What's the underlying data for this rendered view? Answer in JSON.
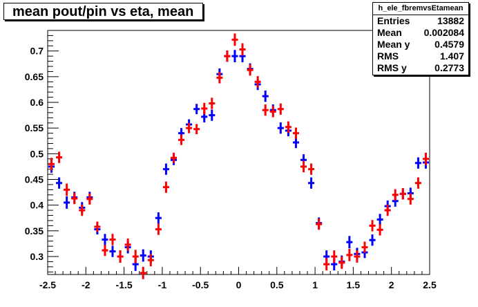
{
  "title": "mean pout/pin vs eta, mean",
  "stats": {
    "name": "h_ele_fbremvsEtamean",
    "rows": [
      {
        "label": "Entries",
        "value": "13882"
      },
      {
        "label": "Mean",
        "value": "0.002084"
      },
      {
        "label": "Mean y",
        "value": "0.4579"
      },
      {
        "label": "RMS",
        "value": "1.407"
      },
      {
        "label": "RMS y",
        "value": "0.2773"
      }
    ]
  },
  "chart_data": {
    "type": "scatter",
    "title": "mean pout/pin vs eta, mean",
    "xlabel": "",
    "ylabel": "",
    "xlim": [
      -2.5,
      2.5
    ],
    "ylim": [
      0.265,
      0.74
    ],
    "xticks": [
      "-2.5",
      "-2",
      "-1.5",
      "-1",
      "-0.5",
      "0",
      "0.5",
      "1",
      "1.5",
      "2",
      "2.5"
    ],
    "yticks": [
      "0.3",
      "0.35",
      "0.4",
      "0.45",
      "0.5",
      "0.55",
      "0.6",
      "0.65",
      "0.7"
    ],
    "grid": false,
    "bin_width": 0.1,
    "error_bars": true,
    "series": [
      {
        "color": "#0000ff",
        "x": [
          -2.45,
          -2.35,
          -2.25,
          -2.15,
          -2.05,
          -1.95,
          -1.85,
          -1.75,
          -1.65,
          -1.55,
          -1.45,
          -1.35,
          -1.25,
          -1.15,
          -1.05,
          -0.95,
          -0.85,
          -0.75,
          -0.65,
          -0.55,
          -0.45,
          -0.35,
          -0.25,
          -0.15,
          -0.05,
          0.05,
          0.15,
          0.25,
          0.35,
          0.45,
          0.55,
          0.65,
          0.75,
          0.85,
          0.95,
          1.05,
          1.15,
          1.25,
          1.35,
          1.45,
          1.55,
          1.65,
          1.75,
          1.85,
          1.95,
          2.05,
          2.15,
          2.25,
          2.35,
          2.45
        ],
        "y": [
          0.475,
          0.443,
          0.405,
          0.415,
          0.395,
          0.415,
          0.353,
          0.333,
          0.31,
          0.3,
          0.318,
          0.285,
          0.302,
          0.3,
          0.375,
          0.47,
          0.488,
          0.54,
          0.557,
          0.587,
          0.572,
          0.575,
          0.655,
          0.69,
          0.69,
          0.69,
          0.665,
          0.635,
          0.612,
          0.585,
          0.55,
          0.545,
          0.522,
          0.488,
          0.443,
          0.365,
          0.3,
          0.285,
          0.29,
          0.328,
          0.305,
          0.308,
          0.332,
          0.372,
          0.398,
          0.408,
          0.422,
          0.423,
          0.482,
          0.483
        ],
        "err": [
          0.012,
          0.011,
          0.012,
          0.011,
          0.011,
          0.011,
          0.01,
          0.011,
          0.011,
          0.012,
          0.012,
          0.013,
          0.012,
          0.012,
          0.011,
          0.011,
          0.01,
          0.01,
          0.01,
          0.01,
          0.011,
          0.011,
          0.011,
          0.011,
          0.012,
          0.012,
          0.011,
          0.011,
          0.011,
          0.011,
          0.011,
          0.011,
          0.011,
          0.011,
          0.011,
          0.011,
          0.012,
          0.012,
          0.012,
          0.012,
          0.012,
          0.011,
          0.011,
          0.011,
          0.011,
          0.011,
          0.011,
          0.011,
          0.011,
          0.012
        ]
      },
      {
        "color": "#ff0000",
        "x": [
          -2.45,
          -2.35,
          -2.25,
          -2.15,
          -2.05,
          -1.95,
          -1.85,
          -1.75,
          -1.65,
          -1.55,
          -1.45,
          -1.35,
          -1.25,
          -1.15,
          -1.05,
          -0.95,
          -0.85,
          -0.75,
          -0.65,
          -0.55,
          -0.45,
          -0.35,
          -0.25,
          -0.15,
          -0.05,
          0.05,
          0.15,
          0.25,
          0.35,
          0.45,
          0.55,
          0.65,
          0.75,
          0.85,
          0.95,
          1.05,
          1.15,
          1.25,
          1.35,
          1.45,
          1.55,
          1.65,
          1.75,
          1.85,
          1.95,
          2.05,
          2.15,
          2.25,
          2.35,
          2.45
        ],
        "y": [
          0.48,
          0.493,
          0.43,
          0.413,
          0.39,
          0.412,
          0.358,
          0.312,
          0.333,
          0.3,
          0.323,
          0.3,
          0.268,
          0.293,
          0.353,
          0.435,
          0.492,
          0.527,
          0.55,
          0.548,
          0.588,
          0.598,
          0.648,
          0.69,
          0.722,
          0.703,
          0.663,
          0.64,
          0.585,
          0.582,
          0.587,
          0.552,
          0.54,
          0.475,
          0.47,
          0.363,
          0.285,
          0.3,
          0.288,
          0.303,
          0.3,
          0.318,
          0.36,
          0.352,
          0.39,
          0.42,
          0.422,
          0.412,
          0.443,
          0.49
        ],
        "err": [
          0.012,
          0.011,
          0.012,
          0.011,
          0.011,
          0.011,
          0.01,
          0.011,
          0.011,
          0.012,
          0.012,
          0.013,
          0.012,
          0.012,
          0.011,
          0.011,
          0.01,
          0.01,
          0.01,
          0.01,
          0.011,
          0.011,
          0.011,
          0.011,
          0.012,
          0.012,
          0.011,
          0.011,
          0.011,
          0.011,
          0.011,
          0.011,
          0.011,
          0.011,
          0.011,
          0.011,
          0.012,
          0.012,
          0.012,
          0.012,
          0.012,
          0.011,
          0.011,
          0.011,
          0.011,
          0.011,
          0.011,
          0.011,
          0.011,
          0.012
        ]
      }
    ]
  }
}
